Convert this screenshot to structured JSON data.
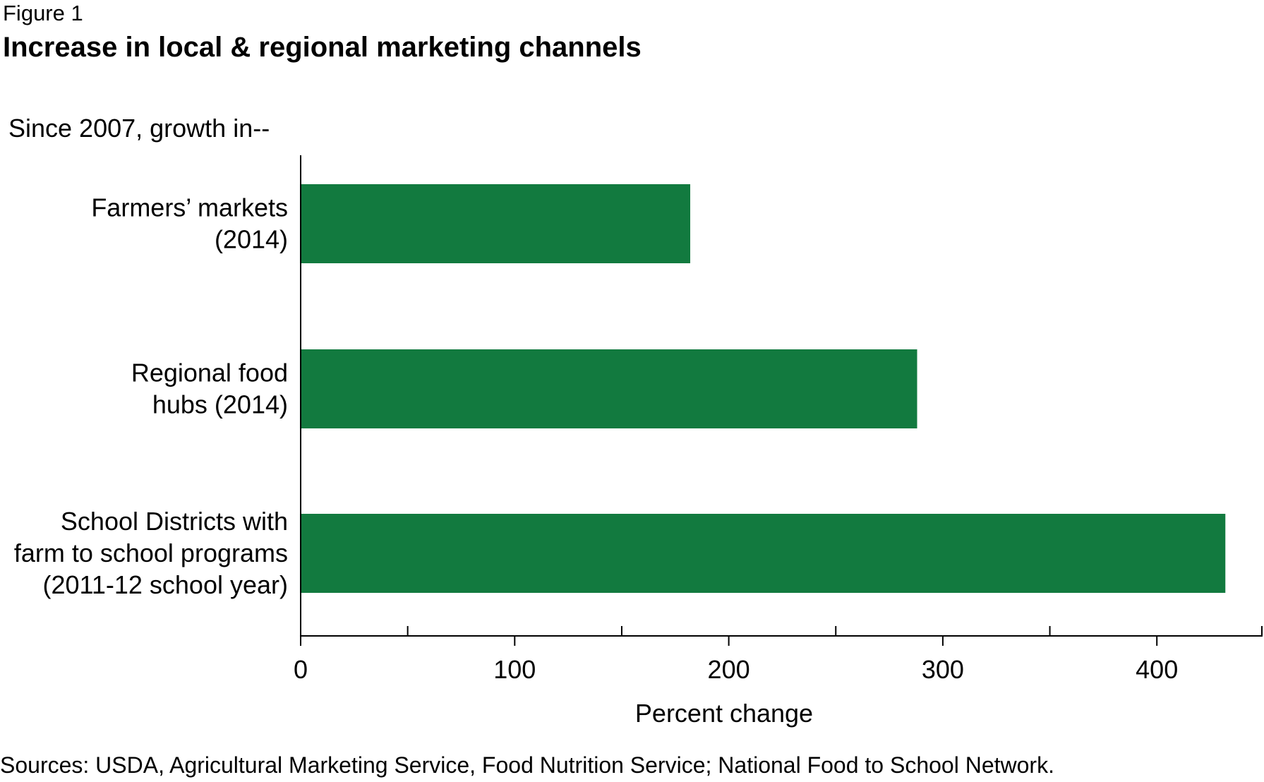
{
  "figure_label": "Figure 1",
  "title": "Increase in local & regional marketing channels",
  "subtitle": "Since 2007, growth in--",
  "sources": "Sources: USDA, Agricultural Marketing Service, Food Nutrition Service; National Food to School Network.",
  "colors": {
    "bar": "#127a3f",
    "axis": "#000000",
    "text": "#000000"
  },
  "chart_data": {
    "type": "bar",
    "orientation": "horizontal",
    "categories": [
      [
        "Farmers’ markets",
        "(2014)"
      ],
      [
        "Regional food",
        "hubs (2014)"
      ],
      [
        "School Districts with",
        "farm to school programs",
        "(2011-12 school year)"
      ]
    ],
    "values": [
      182,
      288,
      432
    ],
    "xlabel": "Percent change",
    "xlim": [
      0,
      450
    ],
    "x_ticks": [
      0,
      100,
      200,
      300,
      400
    ],
    "x_minor_ticks": [
      50,
      150,
      250,
      350,
      450
    ],
    "grid": false,
    "legend": "none"
  }
}
